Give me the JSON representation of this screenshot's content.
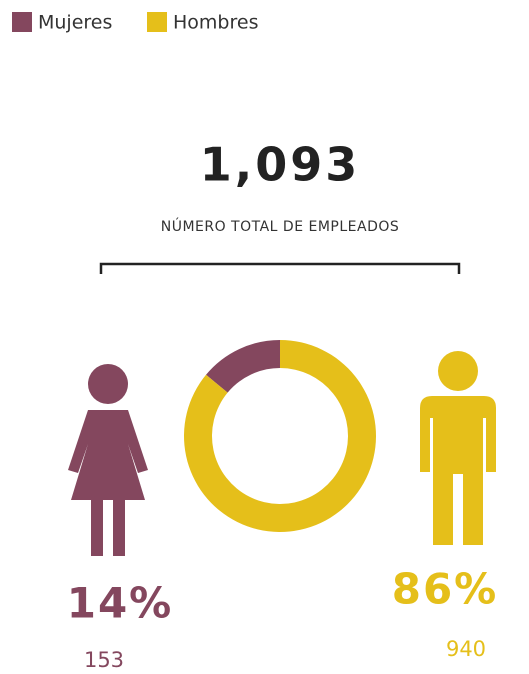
{
  "chart_data": {
    "type": "donut",
    "categories": [
      "Mujeres",
      "Hombres"
    ],
    "values": [
      14,
      86
    ],
    "value_labels": [
      "14%",
      "86%"
    ],
    "counts": [
      153,
      940
    ],
    "colors": [
      "#84475e",
      "#e5bf1a"
    ],
    "total": {
      "value": 1093,
      "label": "1,093"
    },
    "subtitle": "NÚMERO TOTAL DE EMPLEADOS",
    "legend": "top-left"
  }
}
